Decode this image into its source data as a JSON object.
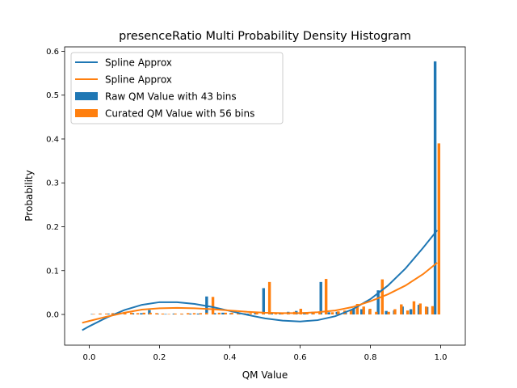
{
  "chart_data": {
    "type": "bar",
    "title": "presenceRatio Multi Probability Density Histogram",
    "xlabel": "QM Value",
    "ylabel": "Probability",
    "xlim": [
      -0.07,
      1.07
    ],
    "ylim": [
      -0.07,
      0.61
    ],
    "x_ticks": [
      0.0,
      0.2,
      0.4,
      0.6,
      0.8,
      1.0
    ],
    "x_tick_labels": [
      "0.0",
      "0.2",
      "0.4",
      "0.6",
      "0.8",
      "1.0"
    ],
    "y_ticks": [
      0.0,
      0.1,
      0.2,
      0.3,
      0.4,
      0.5,
      0.6
    ],
    "y_tick_labels": [
      "0.0",
      "0.1",
      "0.2",
      "0.3",
      "0.4",
      "0.5",
      "0.6"
    ],
    "grid": false,
    "legend_position": "upper-left",
    "legend": [
      {
        "label": "Spline Approx",
        "kind": "line",
        "color": "#1f77b4"
      },
      {
        "label": "Spline Approx",
        "kind": "line",
        "color": "#ff7f0e"
      },
      {
        "label": "Raw QM Value with 43 bins",
        "kind": "bar",
        "color": "#1f77b4"
      },
      {
        "label": "Curated QM Value with 56 bins",
        "kind": "bar",
        "color": "#ff7f0e"
      }
    ],
    "series": [
      {
        "name": "Raw QM Value with 43 bins",
        "kind": "bar",
        "color": "#1f77b4",
        "x": [
          0.012,
          0.035,
          0.058,
          0.082,
          0.105,
          0.128,
          0.152,
          0.175,
          0.198,
          0.221,
          0.245,
          0.268,
          0.291,
          0.314,
          0.338,
          0.361,
          0.384,
          0.407,
          0.43,
          0.454,
          0.477,
          0.5,
          0.523,
          0.547,
          0.57,
          0.593,
          0.616,
          0.64,
          0.663,
          0.686,
          0.709,
          0.733,
          0.756,
          0.779,
          0.802,
          0.826,
          0.849,
          0.872,
          0.895,
          0.919,
          0.942,
          0.965,
          0.988
        ],
        "values": [
          0.001,
          0.002,
          0.002,
          0.003,
          0.002,
          0.003,
          0.003,
          0.01,
          0.002,
          0.001,
          0.002,
          0.001,
          0.002,
          0.002,
          0.041,
          0.003,
          0.004,
          0.003,
          0.003,
          0.002,
          0.004,
          0.06,
          0.003,
          0.004,
          0.006,
          0.008,
          0.005,
          0.006,
          0.074,
          0.005,
          0.006,
          0.008,
          0.014,
          0.012,
          0.01,
          0.055,
          0.008,
          0.009,
          0.018,
          0.012,
          0.022,
          0.017,
          0.577
        ]
      },
      {
        "name": "Curated QM Value with 56 bins",
        "kind": "bar",
        "color": "#ff7f0e",
        "x": [
          0.009,
          0.027,
          0.045,
          0.063,
          0.081,
          0.098,
          0.116,
          0.134,
          0.152,
          0.17,
          0.188,
          0.205,
          0.223,
          0.241,
          0.259,
          0.277,
          0.295,
          0.313,
          0.33,
          0.348,
          0.366,
          0.384,
          0.402,
          0.42,
          0.438,
          0.455,
          0.473,
          0.491,
          0.509,
          0.527,
          0.545,
          0.563,
          0.58,
          0.598,
          0.616,
          0.634,
          0.652,
          0.67,
          0.688,
          0.705,
          0.723,
          0.741,
          0.759,
          0.777,
          0.795,
          0.813,
          0.83,
          0.848,
          0.866,
          0.884,
          0.902,
          0.92,
          0.938,
          0.955,
          0.973,
          0.991
        ],
        "values": [
          0.001,
          0.002,
          0.002,
          0.003,
          0.004,
          0.003,
          0.004,
          0.003,
          0.004,
          0.004,
          0.003,
          0.002,
          0.001,
          0.002,
          0.002,
          0.003,
          0.003,
          0.003,
          0.004,
          0.04,
          0.004,
          0.004,
          0.004,
          0.003,
          0.003,
          0.003,
          0.004,
          0.004,
          0.074,
          0.003,
          0.003,
          0.004,
          0.006,
          0.013,
          0.005,
          0.005,
          0.005,
          0.081,
          0.005,
          0.007,
          0.009,
          0.011,
          0.024,
          0.018,
          0.013,
          0.006,
          0.08,
          0.006,
          0.012,
          0.023,
          0.009,
          0.03,
          0.025,
          0.018,
          0.019,
          0.39
        ]
      },
      {
        "name": "Spline Approx",
        "kind": "line",
        "color": "#1f77b4",
        "x": [
          -0.02,
          0.0,
          0.05,
          0.1,
          0.15,
          0.2,
          0.25,
          0.3,
          0.35,
          0.4,
          0.45,
          0.5,
          0.55,
          0.6,
          0.65,
          0.7,
          0.75,
          0.8,
          0.85,
          0.9,
          0.95,
          0.99
        ],
        "values": [
          -0.036,
          -0.027,
          -0.007,
          0.01,
          0.022,
          0.028,
          0.028,
          0.024,
          0.017,
          0.008,
          -0.001,
          -0.009,
          -0.014,
          -0.016,
          -0.013,
          -0.004,
          0.012,
          0.035,
          0.066,
          0.105,
          0.152,
          0.192
        ]
      },
      {
        "name": "Spline Approx",
        "kind": "line",
        "color": "#ff7f0e",
        "x": [
          -0.02,
          0.0,
          0.05,
          0.1,
          0.15,
          0.2,
          0.25,
          0.3,
          0.35,
          0.4,
          0.45,
          0.5,
          0.55,
          0.6,
          0.65,
          0.7,
          0.75,
          0.8,
          0.85,
          0.9,
          0.95,
          0.99
        ],
        "values": [
          -0.019,
          -0.015,
          -0.005,
          0.004,
          0.011,
          0.014,
          0.015,
          0.014,
          0.012,
          0.009,
          0.006,
          0.004,
          0.003,
          0.003,
          0.005,
          0.009,
          0.017,
          0.03,
          0.046,
          0.066,
          0.092,
          0.118
        ]
      }
    ]
  }
}
